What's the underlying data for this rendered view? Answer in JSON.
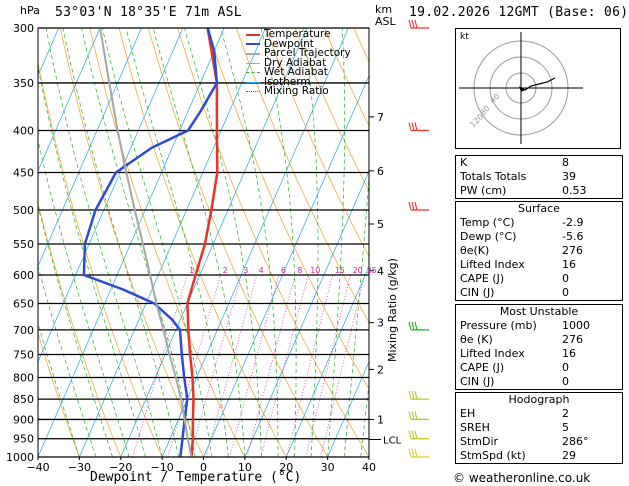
{
  "header": {
    "location": "53°03'N 18°35'E 71m ASL",
    "datetime": "19.02.2026 12GMT (Base: 06)"
  },
  "footer": {
    "credit": "© weatheronline.co.uk"
  },
  "chart_data": {
    "type": "skew-t",
    "xlabel": "Dewpoint / Temperature (°C)",
    "ylabel": "hPa",
    "right_axis_label": "km ASL",
    "mixing_ratio_axis_label": "Mixing Ratio (g/kg)",
    "x_ticks": [
      -40,
      -30,
      -20,
      -10,
      0,
      10,
      20,
      30,
      40
    ],
    "x_tick_labels": [
      "−40",
      "−30",
      "−20",
      "−10",
      "0",
      "10",
      "20",
      "30",
      "40"
    ],
    "xlim": [
      -40,
      40
    ],
    "pressure_levels": [
      300,
      350,
      400,
      450,
      500,
      550,
      600,
      650,
      700,
      750,
      800,
      850,
      900,
      950,
      1000
    ],
    "pressure_labels": [
      "300",
      "350",
      "400",
      "450",
      "500",
      "550",
      "600",
      "650",
      "700",
      "750",
      "800",
      "850",
      "900",
      "950",
      "1000"
    ],
    "km_ticks": [
      {
        "km": 1,
        "label": "1",
        "p": 900
      },
      {
        "km": 2,
        "label": "2",
        "p": 782
      },
      {
        "km": 3,
        "label": "3",
        "p": 686
      },
      {
        "km": 4,
        "label": "4",
        "p": 593
      },
      {
        "km": 5,
        "label": "5",
        "p": 520
      },
      {
        "km": 6,
        "label": "6",
        "p": 448
      },
      {
        "km": 7,
        "label": "7",
        "p": 385
      }
    ],
    "lcl": {
      "label": "LCL",
      "p": 952
    },
    "mixing_ratio_values": [
      1,
      2,
      3,
      4,
      6,
      8,
      10,
      15,
      20,
      25
    ],
    "mixing_ratio_labels": [
      "1",
      "2",
      "3",
      "4",
      "6",
      "8",
      "10",
      "15",
      "20",
      "25"
    ],
    "legend": [
      {
        "label": "Temperature",
        "color": "#e8332a"
      },
      {
        "label": "Dewpoint",
        "color": "#2b4bd6"
      },
      {
        "label": "Parcel Trajectory",
        "color": "#a6a6a6"
      },
      {
        "label": "Dry Adiabat",
        "color": "#f0a020"
      },
      {
        "label": "Wet Adiabat",
        "color": "#20b020"
      },
      {
        "label": "Isotherm",
        "color": "#22a8e0"
      },
      {
        "label": "Mixing Ratio",
        "color": "#d020a0"
      }
    ],
    "series": [
      {
        "name": "Temperature",
        "color": "#e8332a",
        "points": [
          [
            1000,
            -2.9
          ],
          [
            950,
            -4.5
          ],
          [
            900,
            -6.5
          ],
          [
            850,
            -8.5
          ],
          [
            800,
            -11
          ],
          [
            750,
            -14
          ],
          [
            700,
            -17
          ],
          [
            650,
            -20
          ],
          [
            600,
            -21
          ],
          [
            550,
            -22
          ],
          [
            500,
            -24
          ],
          [
            450,
            -26.5
          ],
          [
            400,
            -31
          ],
          [
            350,
            -36
          ],
          [
            300,
            -44
          ]
        ]
      },
      {
        "name": "Dewpoint",
        "color": "#2b4bd6",
        "points": [
          [
            1000,
            -5.6
          ],
          [
            950,
            -7
          ],
          [
            900,
            -8.5
          ],
          [
            850,
            -10
          ],
          [
            800,
            -13
          ],
          [
            750,
            -16
          ],
          [
            700,
            -19
          ],
          [
            680,
            -22
          ],
          [
            650,
            -28
          ],
          [
            625,
            -37
          ],
          [
            600,
            -48
          ],
          [
            550,
            -51
          ],
          [
            500,
            -52
          ],
          [
            450,
            -51
          ],
          [
            420,
            -45
          ],
          [
            400,
            -38
          ],
          [
            380,
            -37
          ],
          [
            350,
            -36
          ],
          [
            320,
            -40
          ],
          [
            300,
            -44
          ]
        ]
      },
      {
        "name": "Parcel Trajectory",
        "color": "#a6a6a6",
        "points": [
          [
            1000,
            -2.9
          ],
          [
            952,
            -5.6
          ],
          [
            900,
            -8.5
          ],
          [
            850,
            -11.5
          ],
          [
            800,
            -15
          ],
          [
            750,
            -19
          ],
          [
            700,
            -23
          ],
          [
            650,
            -27.5
          ],
          [
            600,
            -32
          ],
          [
            550,
            -37
          ],
          [
            500,
            -42.5
          ],
          [
            450,
            -48.5
          ],
          [
            400,
            -55
          ],
          [
            350,
            -62
          ],
          [
            300,
            -70
          ]
        ]
      }
    ],
    "wind_barbs": [
      {
        "p": 300,
        "color": "#e8332a"
      },
      {
        "p": 400,
        "color": "#e8332a"
      },
      {
        "p": 500,
        "color": "#e8332a"
      },
      {
        "p": 700,
        "color": "#20b020"
      },
      {
        "p": 850,
        "color": "#b8c820"
      },
      {
        "p": 900,
        "color": "#b8c820"
      },
      {
        "p": 950,
        "color": "#b8c820"
      },
      {
        "p": 1000,
        "color": "#e0d020"
      }
    ],
    "hodograph": {
      "unit_label": "kt",
      "ring_labels": [
        "40",
        "80",
        "120"
      ]
    }
  },
  "indices": {
    "general": [
      {
        "label": "K",
        "value": "8"
      },
      {
        "label": "Totals Totals",
        "value": "39"
      },
      {
        "label": "PW (cm)",
        "value": "0.53"
      }
    ],
    "surface": {
      "title": "Surface",
      "rows": [
        {
          "label": "Temp (°C)",
          "value": "-2.9"
        },
        {
          "label": "Dewp (°C)",
          "value": "-5.6"
        },
        {
          "label": "θe(K)",
          "value": "276"
        },
        {
          "label": "Lifted Index",
          "value": "16"
        },
        {
          "label": "CAPE (J)",
          "value": "0"
        },
        {
          "label": "CIN (J)",
          "value": "0"
        }
      ]
    },
    "most_unstable": {
      "title": "Most Unstable",
      "rows": [
        {
          "label": "Pressure (mb)",
          "value": "1000"
        },
        {
          "label": "θe (K)",
          "value": "276"
        },
        {
          "label": "Lifted Index",
          "value": "16"
        },
        {
          "label": "CAPE (J)",
          "value": "0"
        },
        {
          "label": "CIN (J)",
          "value": "0"
        }
      ]
    },
    "hodograph": {
      "title": "Hodograph",
      "rows": [
        {
          "label": "EH",
          "value": "2"
        },
        {
          "label": "SREH",
          "value": "5"
        },
        {
          "label": "StmDir",
          "value": "286°"
        },
        {
          "label": "StmSpd (kt)",
          "value": "29"
        }
      ]
    }
  }
}
